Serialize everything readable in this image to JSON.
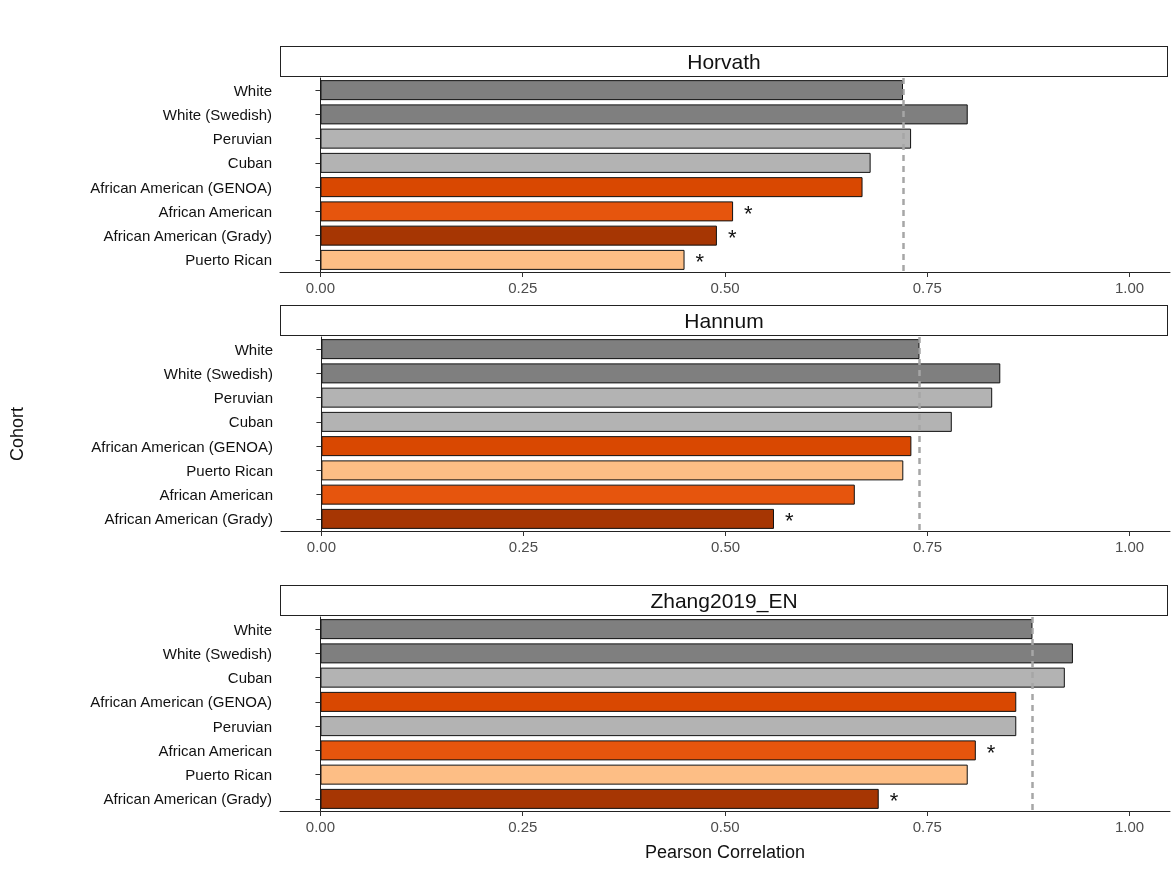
{
  "chart_data": [
    {
      "type": "bar",
      "orientation": "horizontal",
      "title": "Horvath",
      "categories": [
        "White",
        "White (Swedish)",
        "Peruvian",
        "Cuban",
        "African American (GENOA)",
        "African American",
        "African American (Grady)",
        "Puerto Rican"
      ],
      "values": [
        0.72,
        0.8,
        0.73,
        0.68,
        0.67,
        0.51,
        0.49,
        0.45
      ],
      "colors": [
        "#7f7f7f",
        "#7f7f7f",
        "#b3b3b3",
        "#b3b3b3",
        "#d94801",
        "#e6550d",
        "#a63603",
        "#fdbe85"
      ],
      "xlim": [
        -0.05,
        1.05
      ],
      "xticks": [
        {
          "value": 0,
          "label": "0.00"
        },
        {
          "value": 0.25,
          "label": "0.25"
        },
        {
          "value": 0.5,
          "label": "0.50"
        },
        {
          "value": 0.75,
          "label": "0.75"
        },
        {
          "value": 1,
          "label": "1.00"
        }
      ],
      "ref_lines": [
        {
          "axis": "x",
          "value": 0.72,
          "color": "#a6a6a6",
          "line_style": "dashed"
        }
      ],
      "annotations": [
        {
          "text": "*",
          "x": 0.51,
          "y": "African American"
        },
        {
          "text": "*",
          "x": 0.49,
          "y": "African American (Grady)"
        },
        {
          "text": "*",
          "x": 0.45,
          "y": "Puerto Rican"
        }
      ]
    },
    {
      "type": "bar",
      "orientation": "horizontal",
      "title": "Hannum",
      "ylabel": "Cohort",
      "categories": [
        "White",
        "White (Swedish)",
        "Peruvian",
        "Cuban",
        "African American (GENOA)",
        "Puerto Rican",
        "African American",
        "African American (Grady)"
      ],
      "values": [
        0.74,
        0.84,
        0.83,
        0.78,
        0.73,
        0.72,
        0.66,
        0.56
      ],
      "colors": [
        "#7f7f7f",
        "#7f7f7f",
        "#b3b3b3",
        "#b3b3b3",
        "#d94801",
        "#fdbe85",
        "#e6550d",
        "#a63603"
      ],
      "xlim": [
        -0.05,
        1.05
      ],
      "xticks": [
        {
          "value": 0,
          "label": "0.00"
        },
        {
          "value": 0.25,
          "label": "0.25"
        },
        {
          "value": 0.5,
          "label": "0.50"
        },
        {
          "value": 0.75,
          "label": "0.75"
        },
        {
          "value": 1,
          "label": "1.00"
        }
      ],
      "ref_lines": [
        {
          "axis": "x",
          "value": 0.74,
          "color": "#a6a6a6",
          "line_style": "dashed"
        }
      ],
      "annotations": [
        {
          "text": "*",
          "x": 0.56,
          "y": "African American (Grady)"
        }
      ]
    },
    {
      "type": "bar",
      "orientation": "horizontal",
      "title": "Zhang2019_EN",
      "xlabel": "Pearson Correlation",
      "categories": [
        "White",
        "White (Swedish)",
        "Cuban",
        "African American (GENOA)",
        "Peruvian",
        "African American",
        "Puerto Rican",
        "African American (Grady)"
      ],
      "values": [
        0.88,
        0.93,
        0.92,
        0.86,
        0.86,
        0.81,
        0.8,
        0.69
      ],
      "colors": [
        "#7f7f7f",
        "#7f7f7f",
        "#b3b3b3",
        "#d94801",
        "#b3b3b3",
        "#e6550d",
        "#fdbe85",
        "#a63603"
      ],
      "xlim": [
        -0.05,
        1.05
      ],
      "xticks": [
        {
          "value": 0,
          "label": "0.00"
        },
        {
          "value": 0.25,
          "label": "0.25"
        },
        {
          "value": 0.5,
          "label": "0.50"
        },
        {
          "value": 0.75,
          "label": "0.75"
        },
        {
          "value": 1,
          "label": "1.00"
        }
      ],
      "ref_lines": [
        {
          "axis": "x",
          "value": 0.88,
          "color": "#a6a6a6",
          "line_style": "dashed"
        }
      ],
      "annotations": [
        {
          "text": "*",
          "x": 0.81,
          "y": "African American"
        },
        {
          "text": "*",
          "x": 0.69,
          "y": "African American (Grady)"
        }
      ]
    }
  ]
}
